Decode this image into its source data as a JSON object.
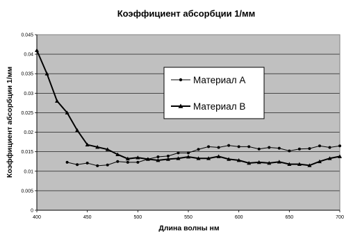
{
  "chart_data": {
    "type": "line",
    "title": "Коэффициент абсорбции 1/мм",
    "xlabel": "Длина волны нм",
    "ylabel": "Коэффициент абсорбции 1/мм",
    "xlim": [
      400,
      700
    ],
    "ylim": [
      0,
      0.045
    ],
    "x_ticks": [
      "400",
      "450",
      "500",
      "550",
      "600",
      "650",
      "700"
    ],
    "y_ticks": [
      "0",
      "0.005",
      "0.01",
      "0.015",
      "0.02",
      "0.025",
      "0.03",
      "0.035",
      "0.04",
      "0.045"
    ],
    "grid": true,
    "legend_position": "center-right",
    "plot_background": "#c0c0c0",
    "series": [
      {
        "name": "Материал A",
        "marker": "circle",
        "color": "#000000",
        "x": [
          430,
          440,
          450,
          460,
          470,
          480,
          490,
          500,
          510,
          520,
          530,
          540,
          550,
          560,
          570,
          580,
          590,
          600,
          610,
          620,
          630,
          640,
          650,
          660,
          670,
          680,
          690,
          700
        ],
        "y": [
          0.0123,
          0.0117,
          0.0121,
          0.0114,
          0.0116,
          0.0125,
          0.0123,
          0.0123,
          0.0131,
          0.0137,
          0.0139,
          0.0147,
          0.0147,
          0.0156,
          0.0163,
          0.0161,
          0.0166,
          0.0163,
          0.0163,
          0.0157,
          0.0161,
          0.0159,
          0.0152,
          0.0157,
          0.0158,
          0.0165,
          0.0161,
          0.0165
        ]
      },
      {
        "name": "Материал B",
        "marker": "triangle",
        "color": "#000000",
        "x": [
          400,
          410,
          420,
          430,
          440,
          450,
          460,
          470,
          480,
          490,
          500,
          510,
          520,
          530,
          540,
          550,
          560,
          570,
          580,
          590,
          600,
          610,
          620,
          630,
          640,
          650,
          660,
          670,
          680,
          690,
          700
        ],
        "y": [
          0.041,
          0.035,
          0.028,
          0.025,
          0.0205,
          0.0168,
          0.0162,
          0.0156,
          0.0143,
          0.0132,
          0.0135,
          0.0131,
          0.0128,
          0.0131,
          0.0133,
          0.0137,
          0.0133,
          0.0133,
          0.0138,
          0.0131,
          0.0128,
          0.0121,
          0.0123,
          0.0121,
          0.0124,
          0.0118,
          0.0118,
          0.0115,
          0.0125,
          0.0133,
          0.0138
        ]
      }
    ]
  }
}
